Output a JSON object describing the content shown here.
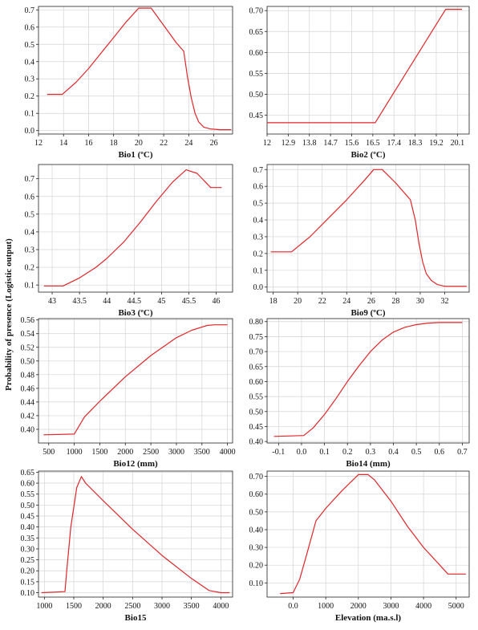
{
  "figure": {
    "ylabel": "Probability of presence (Logistic output)"
  },
  "chart_data": [
    {
      "type": "line",
      "xlabel": "Bio1 (ºC)",
      "xlim": [
        12,
        27.5
      ],
      "ylim": [
        -0.02,
        0.72
      ],
      "xticks": [
        12,
        14,
        16,
        18,
        20,
        22,
        24,
        26
      ],
      "xtick_labels": [
        "12",
        "14",
        "16",
        "18",
        "20",
        "22",
        "24",
        "26"
      ],
      "yticks": [
        0,
        0.1,
        0.2,
        0.3,
        0.4,
        0.5,
        0.6,
        0.7
      ],
      "ytick_labels": [
        "0.0",
        "0.1",
        "0.2",
        "0.3",
        "0.4",
        "0.5",
        "0.6",
        "0.7"
      ],
      "grid": true,
      "x": [
        12.7,
        13.9,
        15,
        16,
        17,
        18,
        19,
        20,
        21,
        22,
        23,
        23.6,
        23.9,
        24.2,
        24.5,
        24.8,
        25.2,
        25.7,
        26.5,
        27.4
      ],
      "y": [
        0.21,
        0.21,
        0.28,
        0.36,
        0.45,
        0.54,
        0.63,
        0.71,
        0.71,
        0.61,
        0.51,
        0.46,
        0.31,
        0.19,
        0.1,
        0.05,
        0.02,
        0.01,
        0.005,
        0.005
      ]
    },
    {
      "type": "line",
      "xlabel": "Bio2 (ºC)",
      "xlim": [
        12,
        20.6
      ],
      "ylim": [
        0.405,
        0.71
      ],
      "xticks": [
        12,
        12.9,
        13.8,
        14.7,
        15.6,
        16.5,
        17.4,
        18.3,
        19.2,
        20.1
      ],
      "xtick_labels": [
        "12",
        "12.9",
        "13.8",
        "14.7",
        "15.6",
        "16.5",
        "17.4",
        "18.3",
        "19.2",
        "20.1"
      ],
      "yticks": [
        0.45,
        0.5,
        0.55,
        0.6,
        0.65,
        0.7
      ],
      "ytick_labels": [
        "0.45",
        "0.50",
        "0.55",
        "0.60",
        "0.65",
        "0.70"
      ],
      "grid": true,
      "x": [
        12,
        16.6,
        19.6,
        20.3
      ],
      "y": [
        0.432,
        0.432,
        0.703,
        0.703
      ]
    },
    {
      "type": "line",
      "xlabel": "Bio3 (ºC)",
      "xlim": [
        42.75,
        46.3
      ],
      "ylim": [
        0.06,
        0.78
      ],
      "xticks": [
        43,
        43.5,
        44,
        44.5,
        45,
        45.5,
        46
      ],
      "xtick_labels": [
        "43",
        "43.5",
        "44",
        "44.5",
        "45",
        "45.5",
        "46"
      ],
      "yticks": [
        0.1,
        0.2,
        0.3,
        0.4,
        0.5,
        0.6,
        0.7
      ],
      "ytick_labels": [
        "0.1",
        "0.2",
        "0.3",
        "0.4",
        "0.5",
        "0.6",
        "0.7"
      ],
      "grid": true,
      "x": [
        42.85,
        43.2,
        43.5,
        43.8,
        44,
        44.3,
        44.6,
        44.9,
        45.2,
        45.45,
        45.65,
        45.9,
        46.1
      ],
      "y": [
        0.095,
        0.095,
        0.14,
        0.2,
        0.25,
        0.34,
        0.45,
        0.57,
        0.68,
        0.75,
        0.73,
        0.65,
        0.65
      ]
    },
    {
      "type": "line",
      "xlabel": "Bio9 (ºC)",
      "xlim": [
        17.5,
        34
      ],
      "ylim": [
        -0.03,
        0.73
      ],
      "xticks": [
        18,
        20,
        22,
        24,
        26,
        28,
        30,
        32
      ],
      "xtick_labels": [
        "18",
        "20",
        "22",
        "24",
        "26",
        "28",
        "30",
        "32"
      ],
      "yticks": [
        0,
        0.1,
        0.2,
        0.3,
        0.4,
        0.5,
        0.6,
        0.7
      ],
      "ytick_labels": [
        "0.0",
        "0.1",
        "0.2",
        "0.3",
        "0.4",
        "0.5",
        "0.6",
        "0.7"
      ],
      "grid": true,
      "x": [
        17.8,
        19.5,
        21,
        22.5,
        24,
        25.5,
        26.2,
        26.9,
        28,
        29.2,
        29.6,
        29.9,
        30.2,
        30.5,
        30.9,
        31.4,
        32,
        32.7,
        33.8
      ],
      "y": [
        0.21,
        0.21,
        0.3,
        0.41,
        0.52,
        0.64,
        0.7,
        0.7,
        0.62,
        0.52,
        0.4,
        0.26,
        0.15,
        0.08,
        0.04,
        0.015,
        0.005,
        0.005,
        0.005
      ]
    },
    {
      "type": "line",
      "xlabel": "Bio12 (mm)",
      "xlim": [
        300,
        4100
      ],
      "ylim": [
        0.38,
        0.562
      ],
      "xticks": [
        500,
        1000,
        1500,
        2000,
        2500,
        3000,
        3500,
        4000
      ],
      "xtick_labels": [
        "500",
        "1000",
        "1500",
        "2000",
        "2500",
        "3000",
        "3500",
        "4000"
      ],
      "yticks": [
        0.4,
        0.42,
        0.44,
        0.46,
        0.48,
        0.5,
        0.52,
        0.54,
        0.56
      ],
      "ytick_labels": [
        "0.40",
        "0.42",
        "0.44",
        "0.46",
        "0.48",
        "0.50",
        "0.52",
        "0.54",
        "0.56"
      ],
      "grid": true,
      "x": [
        400,
        1000,
        1200,
        1500,
        2000,
        2500,
        3000,
        3300,
        3600,
        3750,
        4000
      ],
      "y": [
        0.392,
        0.393,
        0.418,
        0.441,
        0.477,
        0.508,
        0.534,
        0.545,
        0.552,
        0.553,
        0.553
      ]
    },
    {
      "type": "line",
      "xlabel": "Bio14 (mm)",
      "xlim": [
        -0.15,
        0.73
      ],
      "ylim": [
        0.395,
        0.81
      ],
      "xticks": [
        -0.1,
        0,
        0.1,
        0.2,
        0.3,
        0.4,
        0.5,
        0.6,
        0.7
      ],
      "xtick_labels": [
        "-0.1",
        "0.0",
        "0.1",
        "0.2",
        "0.3",
        "0.4",
        "0.5",
        "0.6",
        "0.7"
      ],
      "yticks": [
        0.4,
        0.45,
        0.5,
        0.55,
        0.6,
        0.65,
        0.7,
        0.75,
        0.8
      ],
      "ytick_labels": [
        "0.40",
        "0.45",
        "0.50",
        "0.55",
        "0.60",
        "0.65",
        "0.70",
        "0.75",
        "0.80"
      ],
      "grid": true,
      "x": [
        -0.12,
        0.01,
        0.05,
        0.1,
        0.15,
        0.2,
        0.25,
        0.3,
        0.35,
        0.4,
        0.45,
        0.5,
        0.55,
        0.6,
        0.65,
        0.7
      ],
      "y": [
        0.417,
        0.42,
        0.445,
        0.49,
        0.543,
        0.6,
        0.652,
        0.7,
        0.738,
        0.765,
        0.781,
        0.79,
        0.795,
        0.797,
        0.797,
        0.797
      ]
    },
    {
      "type": "line",
      "xlabel": "Bio15",
      "xlim": [
        900,
        4200
      ],
      "ylim": [
        0.08,
        0.655
      ],
      "xticks": [
        1000,
        1500,
        2000,
        2500,
        3000,
        3500,
        4000
      ],
      "xtick_labels": [
        "1000",
        "1500",
        "2000",
        "2500",
        "3000",
        "3500",
        "4000"
      ],
      "yticks": [
        0.1,
        0.15,
        0.2,
        0.25,
        0.3,
        0.35,
        0.4,
        0.45,
        0.5,
        0.55,
        0.6,
        0.65
      ],
      "ytick_labels": [
        "0.10",
        "0.15",
        "0.20",
        "0.25",
        "0.30",
        "0.35",
        "0.40",
        "0.45",
        "0.50",
        "0.55",
        "0.60",
        "0.65"
      ],
      "grid": true,
      "x": [
        950,
        1350,
        1380,
        1450,
        1550,
        1630,
        1700,
        2000,
        2500,
        3000,
        3500,
        3800,
        4000,
        4150
      ],
      "y": [
        0.1,
        0.105,
        0.2,
        0.4,
        0.58,
        0.63,
        0.6,
        0.52,
        0.39,
        0.27,
        0.165,
        0.11,
        0.1,
        0.1
      ]
    },
    {
      "type": "line",
      "xlabel": "Elevation (ma.s.l)",
      "xlim": [
        -800,
        5400
      ],
      "ylim": [
        0.02,
        0.73
      ],
      "xticks": [
        0,
        1000,
        2000,
        3000,
        4000,
        5000
      ],
      "xtick_labels": [
        "0.0",
        "1000",
        "2000",
        "3000",
        "4000",
        "5000"
      ],
      "yticks": [
        0.1,
        0.2,
        0.3,
        0.4,
        0.5,
        0.6,
        0.7
      ],
      "ytick_labels": [
        "0.10",
        "0.20",
        "0.30",
        "0.40",
        "0.50",
        "0.60",
        "0.70"
      ],
      "grid": true,
      "x": [
        -400,
        0,
        200,
        400,
        700,
        1000,
        1500,
        2000,
        2300,
        2500,
        3000,
        3500,
        4000,
        4500,
        4750,
        5300
      ],
      "y": [
        0.04,
        0.045,
        0.12,
        0.25,
        0.45,
        0.52,
        0.62,
        0.71,
        0.71,
        0.68,
        0.56,
        0.42,
        0.3,
        0.2,
        0.15,
        0.15
      ]
    }
  ]
}
